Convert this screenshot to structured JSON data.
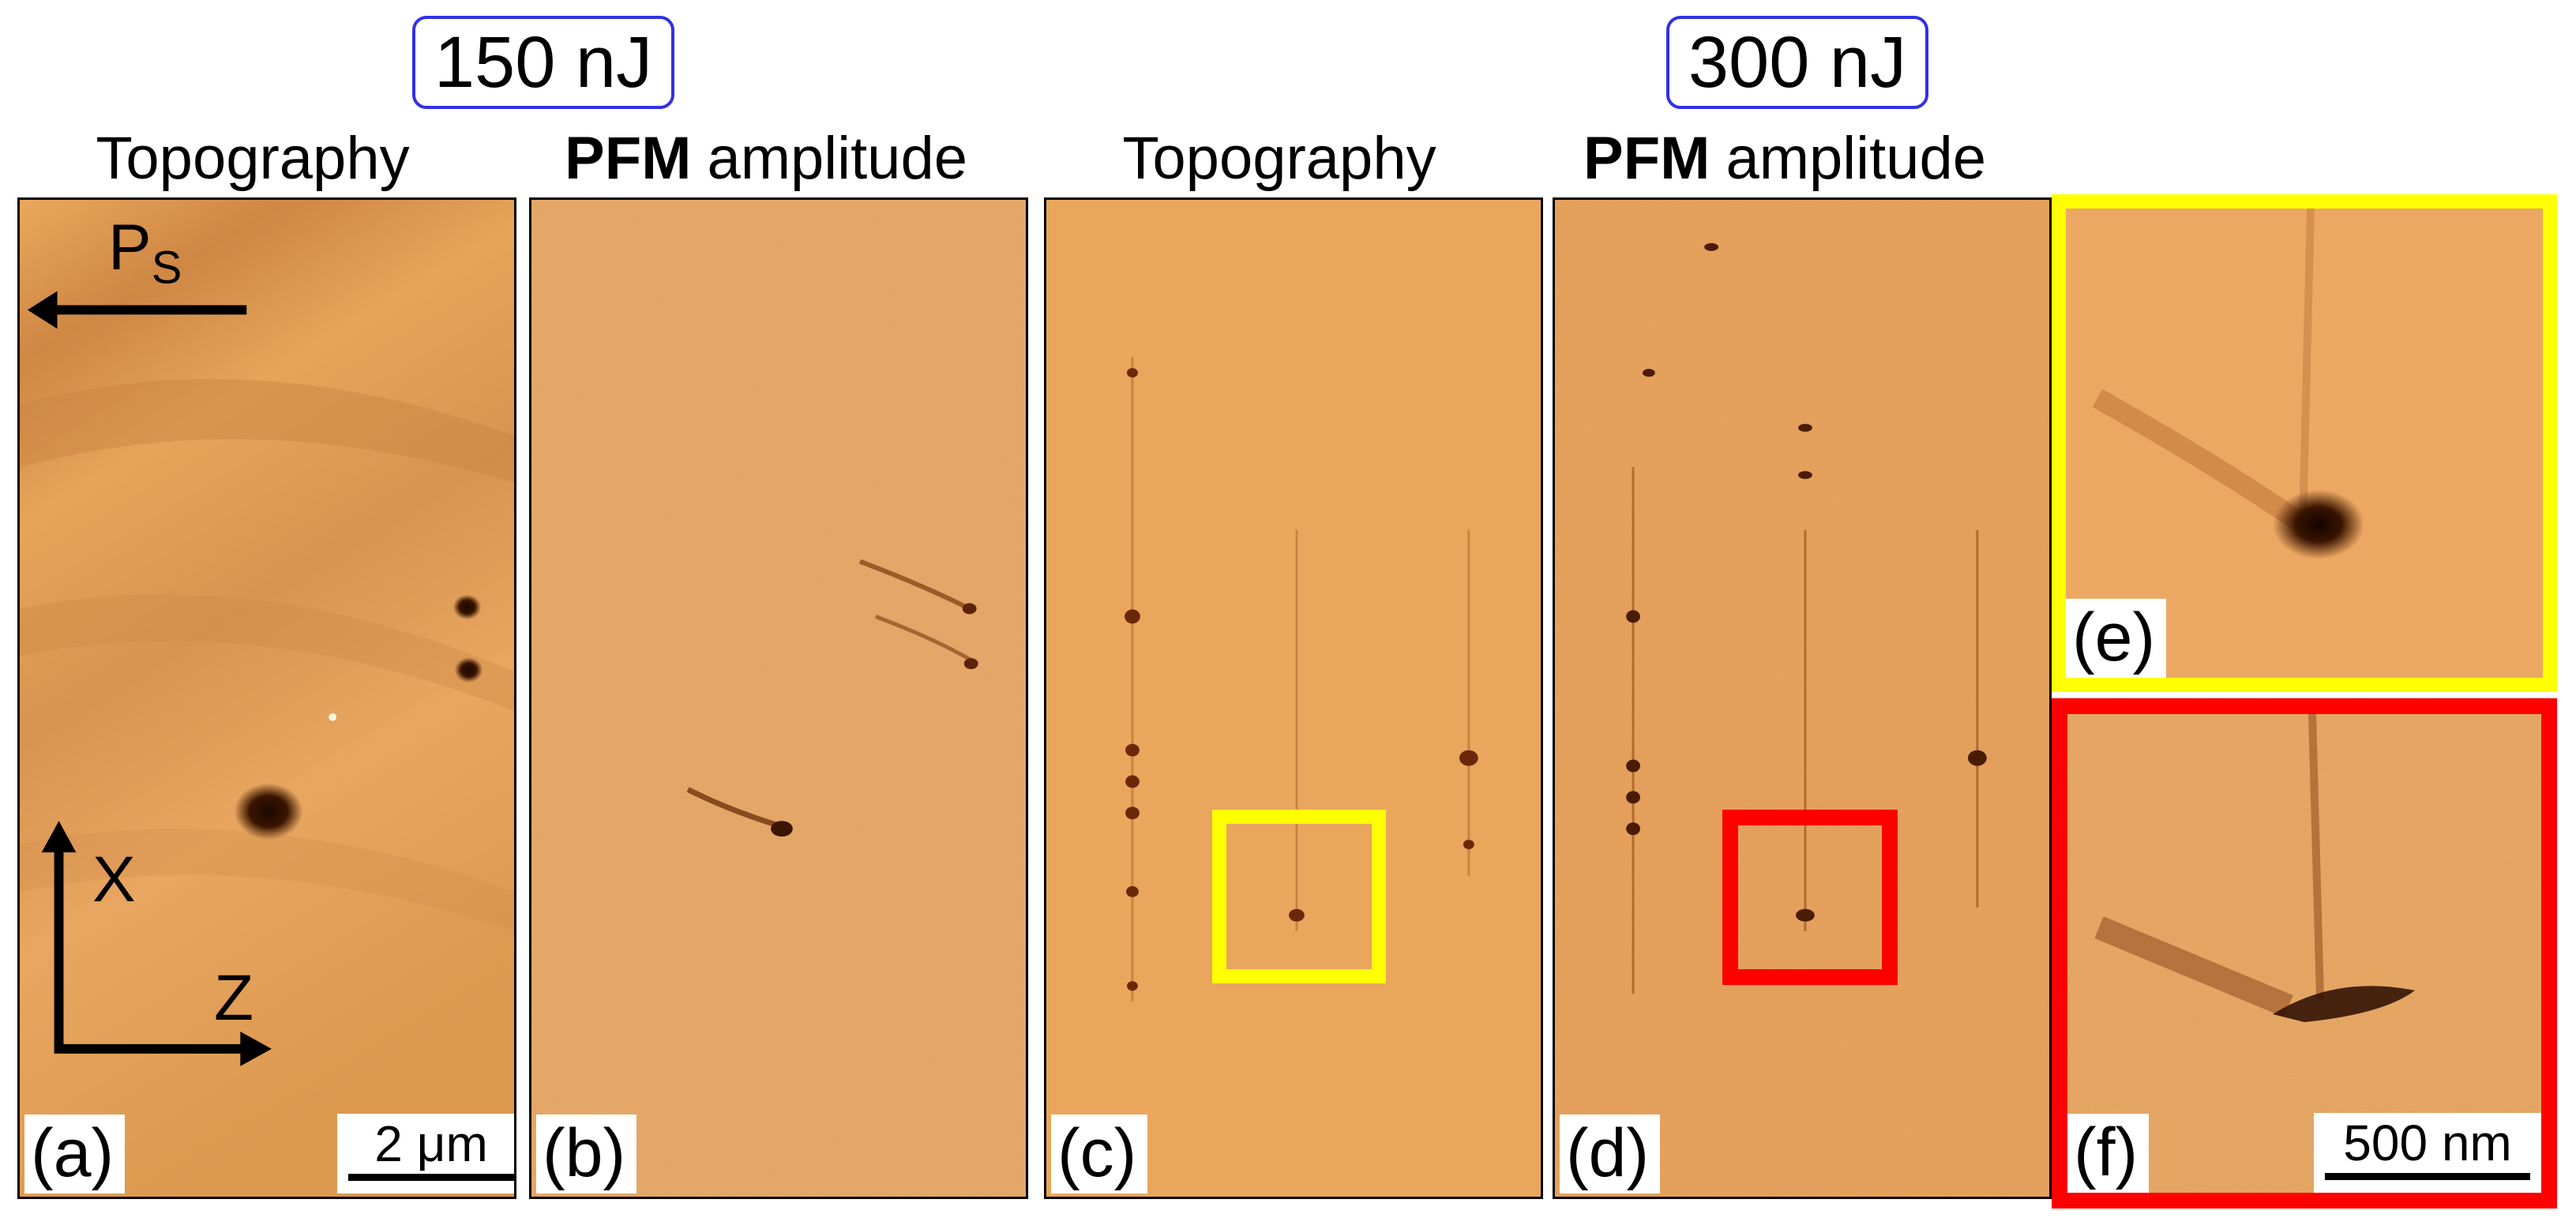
{
  "energies": {
    "left": "150 nJ",
    "right": "300 nJ"
  },
  "titles": {
    "a": {
      "text": "Topography"
    },
    "b": {
      "bold": "PFM",
      "text": "amplitude"
    },
    "c": {
      "text": "Topography"
    },
    "d": {
      "bold": "PFM",
      "text": "amplitude"
    }
  },
  "panel_labels": {
    "a": "(a)",
    "b": "(b)",
    "c": "(c)",
    "d": "(d)",
    "e": "(e)",
    "f": "(f)"
  },
  "polarization": {
    "label": "P",
    "subscript": "S"
  },
  "axes": {
    "x": "X",
    "z": "Z"
  },
  "scalebars": {
    "a": "2 μm",
    "f": "500 nm"
  },
  "colors": {
    "inset_e_frame": "#ffff00",
    "inset_f_frame": "#ff0000",
    "energy_box_border": "#3131e6",
    "afm_base": "#e8a45c"
  }
}
